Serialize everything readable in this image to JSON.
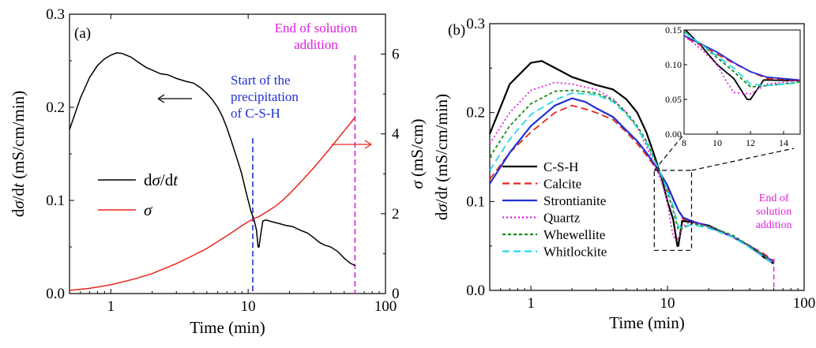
{
  "chart_data": [
    {
      "panel": "(a)",
      "type": "line",
      "x_scale": "log",
      "xlim": [
        0.5,
        100
      ],
      "xticks": [
        1,
        10,
        100
      ],
      "xtick_labels": [
        "1",
        "10",
        "100"
      ],
      "xlabel": "Time (min)",
      "ylim_left": [
        0,
        0.3
      ],
      "yticks_left": [
        "0.0",
        "0.1",
        "0.2",
        "0.3"
      ],
      "ylabel_left_parts": [
        "d",
        "σ",
        "/d",
        "t",
        " (mS/cm/min)"
      ],
      "ylim_right": [
        0,
        7
      ],
      "yticks_right": [
        "0",
        "2",
        "4",
        "6"
      ],
      "ylabel_right_parts": [
        "σ",
        " (mS/cm)"
      ],
      "legend": [
        {
          "name_parts": [
            "d",
            "σ",
            "/d",
            "t"
          ],
          "color": "#000000",
          "axis": "left"
        },
        {
          "name_parts": [
            "σ"
          ],
          "color": "#e8261c",
          "axis": "right"
        }
      ],
      "series": [
        {
          "id": "dsigma",
          "color": "#000000",
          "axis": "left",
          "points": [
            [
              0.5,
              0.176
            ],
            [
              0.6,
              0.21
            ],
            [
              0.7,
              0.232
            ],
            [
              0.8,
              0.245
            ],
            [
              0.9,
              0.252
            ],
            [
              1.0,
              0.256
            ],
            [
              1.1,
              0.2585
            ],
            [
              1.2,
              0.258
            ],
            [
              1.4,
              0.254
            ],
            [
              1.6,
              0.248
            ],
            [
              1.8,
              0.243
            ],
            [
              2.0,
              0.24
            ],
            [
              2.3,
              0.236
            ],
            [
              2.6,
              0.235
            ],
            [
              3.0,
              0.231
            ],
            [
              3.5,
              0.228
            ],
            [
              4.0,
              0.226
            ],
            [
              4.5,
              0.221
            ],
            [
              5.0,
              0.215
            ],
            [
              5.5,
              0.208
            ],
            [
              6.0,
              0.2
            ],
            [
              6.5,
              0.19
            ],
            [
              7.0,
              0.178
            ],
            [
              7.5,
              0.165
            ],
            [
              8.0,
              0.152
            ],
            [
              8.5,
              0.14
            ],
            [
              9.0,
              0.128
            ],
            [
              9.5,
              0.113
            ],
            [
              10.0,
              0.1
            ],
            [
              10.5,
              0.088
            ],
            [
              11.0,
              0.08
            ],
            [
              11.5,
              0.068
            ],
            [
              11.8,
              0.05
            ],
            [
              12.0,
              0.05
            ],
            [
              12.3,
              0.062
            ],
            [
              12.8,
              0.078
            ],
            [
              13.5,
              0.079
            ],
            [
              15,
              0.077
            ],
            [
              17,
              0.075
            ],
            [
              19,
              0.073
            ],
            [
              21,
              0.072
            ],
            [
              24,
              0.068
            ],
            [
              27,
              0.065
            ],
            [
              30,
              0.06
            ],
            [
              33,
              0.055
            ],
            [
              36,
              0.052
            ],
            [
              40,
              0.05
            ],
            [
              45,
              0.045
            ],
            [
              50,
              0.038
            ],
            [
              55,
              0.033
            ],
            [
              60,
              0.03
            ]
          ]
        },
        {
          "id": "sigma",
          "color": "#e8261c",
          "axis": "right",
          "points": [
            [
              0.5,
              0.08
            ],
            [
              0.7,
              0.13
            ],
            [
              1.0,
              0.22
            ],
            [
              1.5,
              0.37
            ],
            [
              2.0,
              0.5
            ],
            [
              3.0,
              0.75
            ],
            [
              4.0,
              0.96
            ],
            [
              5.0,
              1.13
            ],
            [
              6.0,
              1.3
            ],
            [
              7.0,
              1.45
            ],
            [
              8.0,
              1.58
            ],
            [
              9.0,
              1.7
            ],
            [
              10,
              1.8
            ],
            [
              11,
              1.88
            ],
            [
              12,
              1.93
            ],
            [
              14,
              2.07
            ],
            [
              16,
              2.2
            ],
            [
              18,
              2.35
            ],
            [
              20,
              2.5
            ],
            [
              25,
              2.85
            ],
            [
              30,
              3.15
            ],
            [
              35,
              3.42
            ],
            [
              40,
              3.66
            ],
            [
              45,
              3.88
            ],
            [
              50,
              4.08
            ],
            [
              55,
              4.25
            ],
            [
              60,
              4.42
            ]
          ]
        }
      ],
      "vlines": [
        {
          "x": 10.8,
          "color": "#1f2fd0",
          "label_lines": [
            "Start of the",
            "precipitation",
            "of C-S-H"
          ]
        },
        {
          "x": 60,
          "color": "#e020e0",
          "label_lines": [
            "End of solution",
            "addition"
          ]
        }
      ]
    },
    {
      "panel": "(b)",
      "type": "line",
      "x_scale": "log",
      "xlim": [
        0.5,
        100
      ],
      "xticks": [
        1,
        10,
        100
      ],
      "xtick_labels": [
        "1",
        "10",
        "100"
      ],
      "xlabel": "Time (min)",
      "ylim": [
        0,
        0.3
      ],
      "yticks": [
        "0.0",
        "0.1",
        "0.2",
        "0.3"
      ],
      "ylabel_parts": [
        "d",
        "σ",
        "/d",
        "t",
        " (mS/cm/min)"
      ],
      "end_label_lines": [
        "End of",
        "solution",
        "addition"
      ],
      "series": [
        {
          "name": "C-S-H",
          "color": "#000000",
          "dash": "",
          "points": [
            [
              0.5,
              0.176
            ],
            [
              0.7,
              0.232
            ],
            [
              1.0,
              0.256
            ],
            [
              1.2,
              0.258
            ],
            [
              1.6,
              0.248
            ],
            [
              2.0,
              0.24
            ],
            [
              3.0,
              0.231
            ],
            [
              4.0,
              0.226
            ],
            [
              5.0,
              0.215
            ],
            [
              6.0,
              0.2
            ],
            [
              7.0,
              0.178
            ],
            [
              8.0,
              0.152
            ],
            [
              9.0,
              0.128
            ],
            [
              10,
              0.1
            ],
            [
              11,
              0.08
            ],
            [
              11.8,
              0.05
            ],
            [
              12.0,
              0.05
            ],
            [
              12.8,
              0.078
            ],
            [
              15,
              0.077
            ],
            [
              20,
              0.073
            ],
            [
              30,
              0.06
            ],
            [
              40,
              0.05
            ],
            [
              50,
              0.038
            ],
            [
              60,
              0.03
            ]
          ]
        },
        {
          "name": "Calcite",
          "color": "#e8261c",
          "dash": "9,5",
          "points": [
            [
              0.5,
              0.125
            ],
            [
              0.7,
              0.155
            ],
            [
              1.0,
              0.178
            ],
            [
              1.5,
              0.2
            ],
            [
              2.0,
              0.208
            ],
            [
              2.5,
              0.204
            ],
            [
              3.0,
              0.2
            ],
            [
              4.0,
              0.192
            ],
            [
              5.0,
              0.178
            ],
            [
              6.0,
              0.165
            ],
            [
              7.0,
              0.152
            ],
            [
              8.0,
              0.14
            ],
            [
              9.0,
              0.128
            ],
            [
              10,
              0.115
            ],
            [
              11,
              0.102
            ],
            [
              12,
              0.09
            ],
            [
              13,
              0.08
            ],
            [
              15,
              0.078
            ],
            [
              20,
              0.072
            ],
            [
              30,
              0.06
            ],
            [
              40,
              0.05
            ],
            [
              50,
              0.042
            ],
            [
              60,
              0.033
            ]
          ]
        },
        {
          "name": "Strontianite",
          "color": "#1f2fd0",
          "dash": "",
          "points": [
            [
              0.5,
              0.12
            ],
            [
              0.7,
              0.155
            ],
            [
              1.0,
              0.185
            ],
            [
              1.5,
              0.208
            ],
            [
              2.0,
              0.216
            ],
            [
              2.5,
              0.212
            ],
            [
              3.0,
              0.205
            ],
            [
              4.0,
              0.195
            ],
            [
              5.0,
              0.18
            ],
            [
              6.0,
              0.168
            ],
            [
              7.0,
              0.155
            ],
            [
              8.0,
              0.142
            ],
            [
              9.0,
              0.13
            ],
            [
              10,
              0.118
            ],
            [
              11,
              0.103
            ],
            [
              12,
              0.09
            ],
            [
              13,
              0.082
            ],
            [
              15,
              0.078
            ],
            [
              20,
              0.072
            ],
            [
              30,
              0.06
            ],
            [
              40,
              0.05
            ],
            [
              50,
              0.04
            ],
            [
              60,
              0.032
            ]
          ]
        },
        {
          "name": "Quartz",
          "color": "#e020e0",
          "dash": "2,3",
          "points": [
            [
              0.5,
              0.165
            ],
            [
              0.7,
              0.2
            ],
            [
              1.0,
              0.225
            ],
            [
              1.5,
              0.234
            ],
            [
              2.0,
              0.232
            ],
            [
              3.0,
              0.226
            ],
            [
              4.0,
              0.215
            ],
            [
              5.0,
              0.2
            ],
            [
              6.0,
              0.183
            ],
            [
              7.0,
              0.163
            ],
            [
              8.0,
              0.142
            ],
            [
              9.0,
              0.123
            ],
            [
              10,
              0.1
            ],
            [
              10.5,
              0.078
            ],
            [
              11,
              0.06
            ],
            [
              12,
              0.058
            ],
            [
              13,
              0.072
            ],
            [
              15,
              0.078
            ],
            [
              20,
              0.072
            ],
            [
              30,
              0.06
            ],
            [
              40,
              0.05
            ],
            [
              50,
              0.04
            ],
            [
              60,
              0.032
            ]
          ]
        },
        {
          "name": "Whewellite",
          "color": "#1a8a1a",
          "dash": "4,3",
          "points": [
            [
              0.5,
              0.15
            ],
            [
              0.7,
              0.185
            ],
            [
              1.0,
              0.21
            ],
            [
              1.5,
              0.224
            ],
            [
              2.0,
              0.225
            ],
            [
              3.0,
              0.222
            ],
            [
              4.0,
              0.214
            ],
            [
              5.0,
              0.2
            ],
            [
              6.0,
              0.185
            ],
            [
              7.0,
              0.168
            ],
            [
              8.0,
              0.148
            ],
            [
              9.0,
              0.13
            ],
            [
              10,
              0.11
            ],
            [
              11,
              0.09
            ],
            [
              12,
              0.068
            ],
            [
              13,
              0.07
            ],
            [
              15,
              0.075
            ],
            [
              20,
              0.072
            ],
            [
              30,
              0.062
            ],
            [
              40,
              0.05
            ],
            [
              50,
              0.04
            ],
            [
              60,
              0.03
            ]
          ]
        },
        {
          "name": "Whitlockite",
          "color": "#22d8e8",
          "dash": "9,5",
          "points": [
            [
              0.5,
              0.135
            ],
            [
              0.7,
              0.17
            ],
            [
              1.0,
              0.198
            ],
            [
              1.5,
              0.214
            ],
            [
              2.0,
              0.222
            ],
            [
              3.0,
              0.22
            ],
            [
              4.0,
              0.212
            ],
            [
              5.0,
              0.198
            ],
            [
              6.0,
              0.183
            ],
            [
              7.0,
              0.166
            ],
            [
              8.0,
              0.147
            ],
            [
              9.0,
              0.13
            ],
            [
              10,
              0.112
            ],
            [
              11,
              0.095
            ],
            [
              12,
              0.072
            ],
            [
              13,
              0.07
            ],
            [
              15,
              0.074
            ],
            [
              20,
              0.07
            ],
            [
              30,
              0.06
            ],
            [
              40,
              0.048
            ],
            [
              50,
              0.038
            ],
            [
              60,
              0.03
            ]
          ]
        }
      ],
      "inset": {
        "xlim": [
          8,
          15
        ],
        "xticks": [
          "8",
          "10",
          "12",
          "14"
        ],
        "ylim": [
          0,
          0.15
        ],
        "yticks": [
          "0.00",
          "0.05",
          "0.10",
          "0.15"
        ],
        "zoom_box": {
          "x": [
            8,
            15
          ],
          "y": [
            0.045,
            0.135
          ]
        }
      },
      "end_line_x": 60
    }
  ]
}
